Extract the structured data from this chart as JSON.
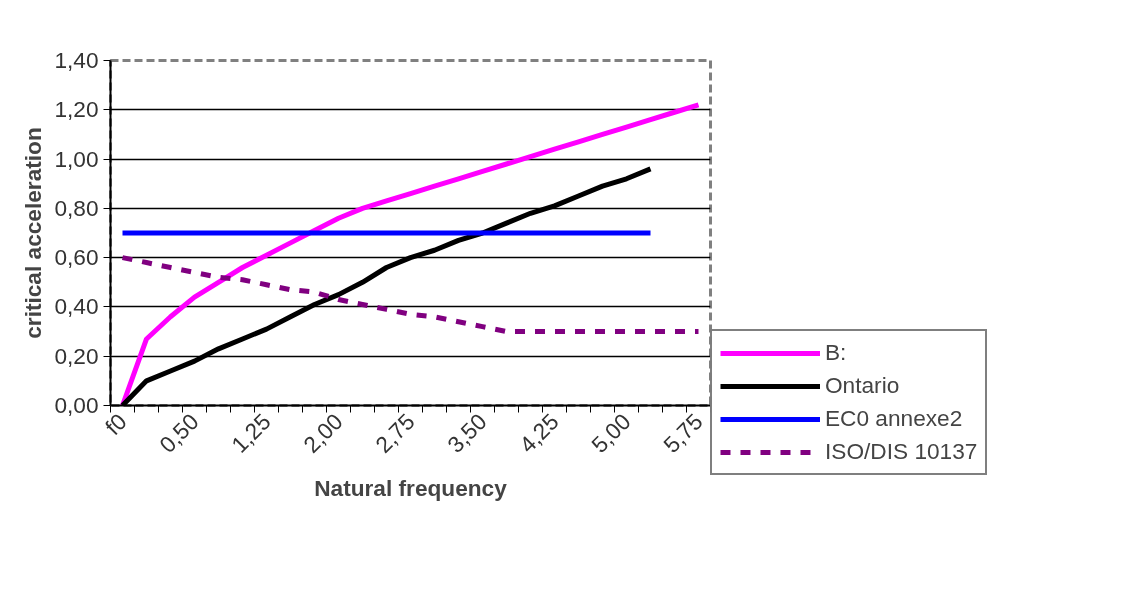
{
  "chart_data": {
    "type": "line",
    "xlabel": "Natural frequency",
    "ylabel": "critical acceleration",
    "categories": [
      "f0",
      null,
      null,
      "0,50",
      null,
      null,
      "1,25",
      null,
      null,
      "2,00",
      null,
      null,
      "2,75",
      null,
      null,
      "3,50",
      null,
      null,
      "4,25",
      null,
      null,
      "5,00",
      null,
      null,
      "5,75"
    ],
    "series": [
      {
        "name": "B:",
        "color": "#ff00ff",
        "values": [
          0,
          0.27,
          0.36,
          0.44,
          0.5,
          0.56,
          0.61,
          0.66,
          0.71,
          0.76,
          0.8,
          0.83,
          0.86,
          0.89,
          0.92,
          0.95,
          0.98,
          1.01,
          1.04,
          1.07,
          1.1,
          1.13,
          1.16,
          1.19,
          1.22
        ]
      },
      {
        "name": "Ontario",
        "color": "#000000",
        "values": [
          0,
          0.1,
          0.14,
          0.18,
          0.23,
          0.27,
          0.31,
          0.36,
          0.41,
          0.45,
          0.5,
          0.56,
          0.6,
          0.63,
          0.67,
          0.7,
          0.74,
          0.78,
          0.81,
          0.85,
          0.89,
          0.92,
          0.96,
          null,
          null
        ]
      },
      {
        "name": "EC0 annexe2",
        "color": "#0000ff",
        "values": [
          0.7,
          0.7,
          0.7,
          0.7,
          0.7,
          0.7,
          0.7,
          0.7,
          0.7,
          0.7,
          0.7,
          0.7,
          0.7,
          0.7,
          0.7,
          0.7,
          0.7,
          0.7,
          0.7,
          0.7,
          0.7,
          0.7,
          0.7,
          null,
          null
        ]
      },
      {
        "name": "ISO/DIS 10137",
        "color": "#800080",
        "line_style": "dashed",
        "values": [
          0.6,
          0.58,
          0.56,
          0.54,
          0.52,
          0.51,
          0.49,
          0.47,
          0.46,
          0.43,
          0.41,
          0.39,
          0.37,
          0.36,
          0.34,
          0.32,
          0.3,
          0.3,
          0.3,
          0.3,
          0.3,
          0.3,
          0.3,
          0.3,
          0.3
        ]
      }
    ],
    "ylim": [
      0,
      1.4
    ],
    "yticks": [
      {
        "value": 0,
        "label": "0,00"
      },
      {
        "value": 0.2,
        "label": "0,20"
      },
      {
        "value": 0.4,
        "label": "0,40"
      },
      {
        "value": 0.6,
        "label": "0,60"
      },
      {
        "value": 0.8,
        "label": "0,80"
      },
      {
        "value": 1.0,
        "label": "1,00"
      },
      {
        "value": 1.2,
        "label": "1,20"
      },
      {
        "value": 1.4,
        "label": "1,40"
      }
    ],
    "grid": "y",
    "legend": "right"
  }
}
